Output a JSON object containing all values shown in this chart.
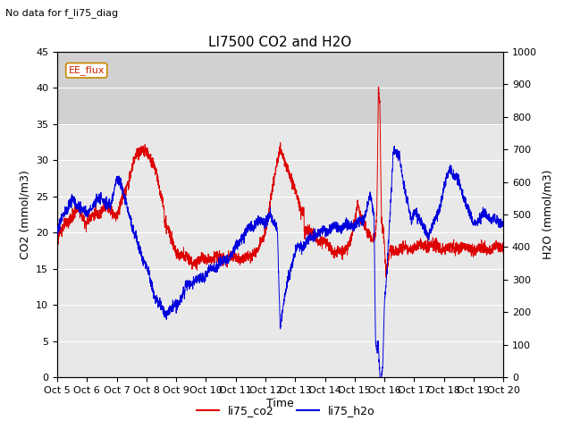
{
  "title": "LI7500 CO2 and H2O",
  "xlabel": "Time",
  "ylabel_left": "CO2 (mmol/m3)",
  "ylabel_right": "H2O (mmol/m3)",
  "ylim_left": [
    0,
    45
  ],
  "ylim_right": [
    0,
    1000
  ],
  "yticks_left": [
    0,
    5,
    10,
    15,
    20,
    25,
    30,
    35,
    40,
    45
  ],
  "yticks_right": [
    0,
    100,
    200,
    300,
    400,
    500,
    600,
    700,
    800,
    900,
    1000
  ],
  "no_data_text": "No data for f_li75_diag",
  "ee_flux_label": "EE_flux",
  "background_color": "#ffffff",
  "plot_bg_color": "#e8e8e8",
  "shade_top_color": "#d0d0d0",
  "co2_color": "#dd0000",
  "h2o_color": "#0000dd",
  "legend_labels": [
    "li75_co2",
    "li75_h2o"
  ],
  "n_points": 3000
}
